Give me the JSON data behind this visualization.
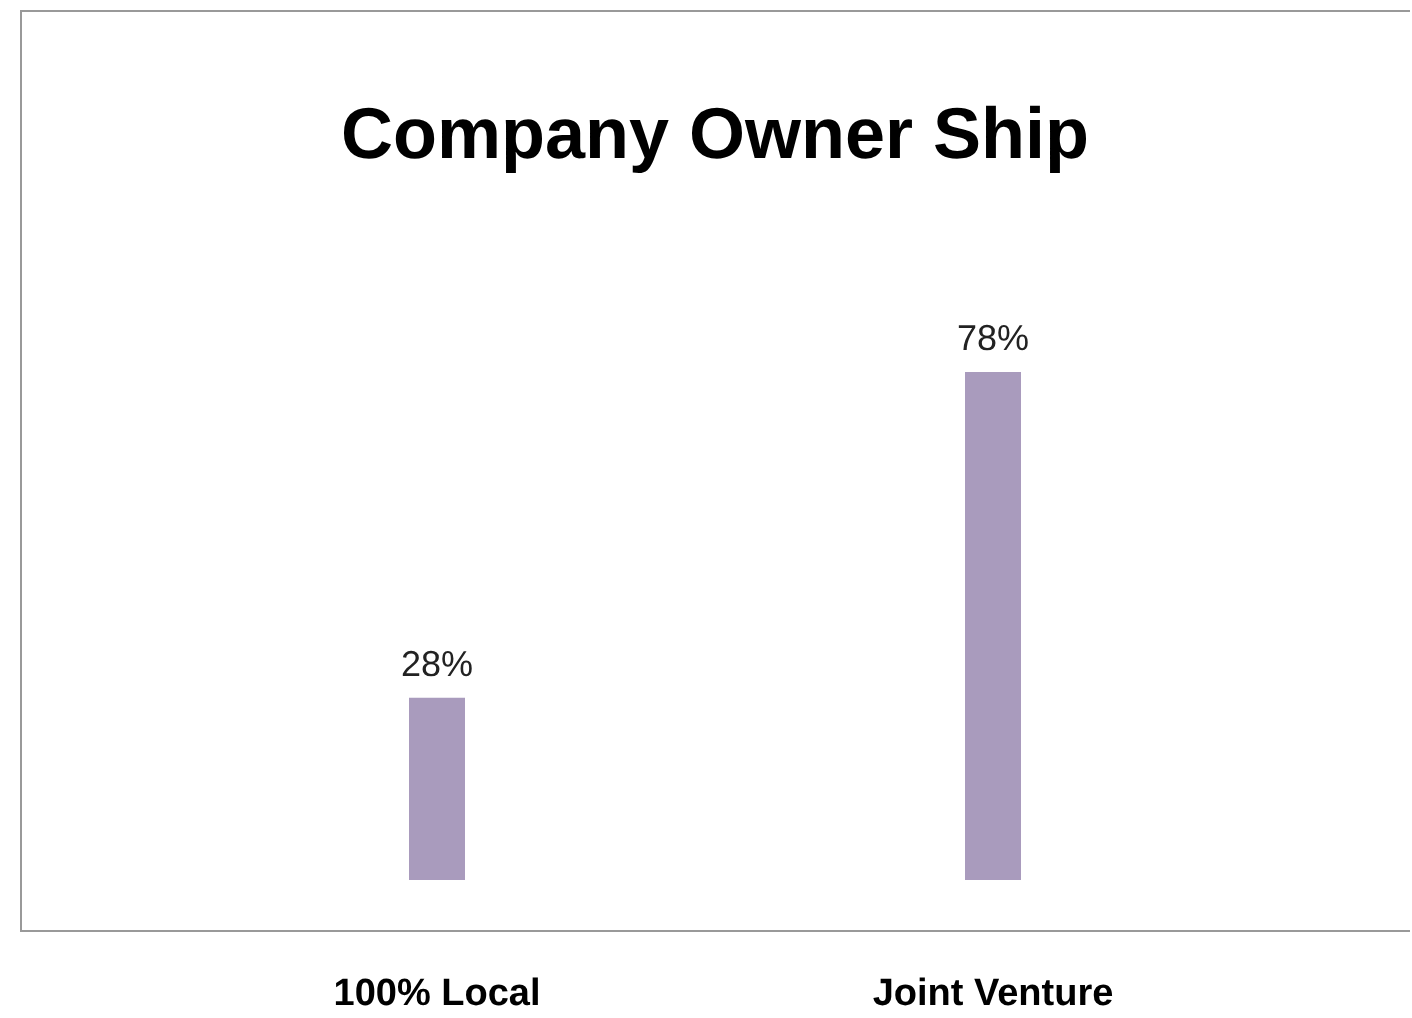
{
  "chart_data": {
    "type": "bar",
    "title": "Company Owner Ship",
    "categories": [
      "100% Local",
      "Joint Venture"
    ],
    "values": [
      28,
      78
    ],
    "value_labels": [
      "28%",
      "78%"
    ],
    "color": "#a99bbd",
    "grid": false
  }
}
